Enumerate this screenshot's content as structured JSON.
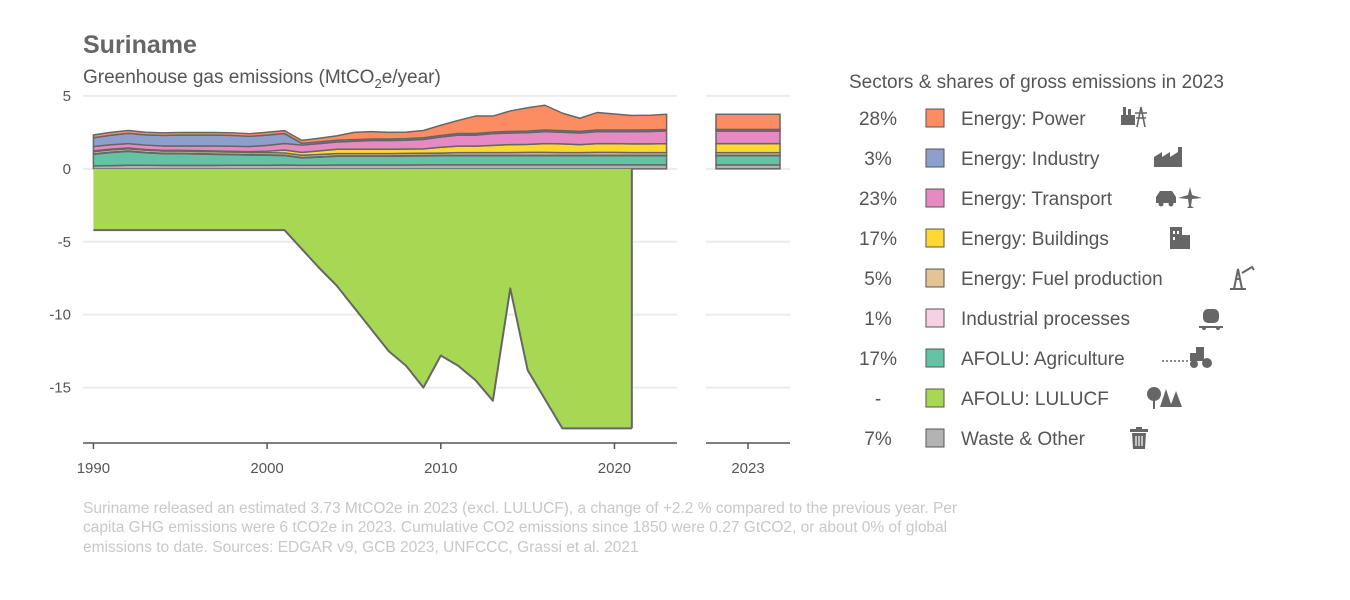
{
  "header": {
    "title": "Suriname",
    "subtitle_prefix": "Greenhouse gas emissions (MtCO",
    "subtitle_sub": "2",
    "subtitle_suffix": "e/year)"
  },
  "legend": {
    "title": "Sectors & shares of gross emissions in 2023",
    "items": [
      {
        "share": "28%",
        "label": "Energy: Power",
        "color": "#fc8d62",
        "icon": "power-plant-icon"
      },
      {
        "share": "3%",
        "label": "Energy: Industry",
        "color": "#8da0cb",
        "icon": "factory-icon"
      },
      {
        "share": "23%",
        "label": "Energy: Transport",
        "color": "#e78ac3",
        "icon": "car-plane-icon"
      },
      {
        "share": "17%",
        "label": "Energy: Buildings",
        "color": "#ffd92f",
        "icon": "building-icon"
      },
      {
        "share": "5%",
        "label": "Energy: Fuel production",
        "color": "#e5c494",
        "icon": "oil-rig-icon"
      },
      {
        "share": "1%",
        "label": "Industrial processes",
        "color": "#f9cfe4",
        "icon": "cement-mixer-icon"
      },
      {
        "share": "17%",
        "label": "AFOLU: Agriculture",
        "color": "#66c2a5",
        "icon": "tractor-icon"
      },
      {
        "share": "-",
        "label": "AFOLU: LULUCF",
        "color": "#a6d854",
        "icon": "trees-icon"
      },
      {
        "share": "7%",
        "label": "Waste & Other",
        "color": "#b3b3b3",
        "icon": "trash-icon"
      }
    ]
  },
  "footer": {
    "line1": "Suriname released an estimated 3.73 MtCO2e in 2023 (excl. LULUCF), a change of +2.2 % compared to the previous year. Per",
    "line2": "capita GHG emissions were 6 tCO2e in 2023. Cumulative CO2 emissions since 1850 were 0.27 GtCO2, or about 0% of global",
    "line3": "emissions to date. Sources: EDGAR v9, GCB 2023, UNFCCC, Grassi et al. 2021"
  },
  "chart_data": {
    "type": "area",
    "title": "Suriname",
    "subtitle": "Greenhouse gas emissions (MtCO2e/year)",
    "x": [
      1990,
      1991,
      1992,
      1993,
      1994,
      1995,
      1996,
      1997,
      1998,
      1999,
      2000,
      2001,
      2002,
      2003,
      2004,
      2005,
      2006,
      2007,
      2008,
      2009,
      2010,
      2011,
      2012,
      2013,
      2014,
      2015,
      2016,
      2017,
      2018,
      2019,
      2020,
      2021,
      2022,
      2023
    ],
    "xticks": [
      1990,
      2000,
      2010,
      2020
    ],
    "yticks": [
      5,
      0,
      -5,
      -10,
      -15
    ],
    "ylim": [
      -18.8,
      5.2
    ],
    "xlim": [
      1989.4,
      2023.6
    ],
    "series": [
      {
        "name": "Waste & Other",
        "color": "#b3b3b3",
        "values": [
          0.2,
          0.22,
          0.25,
          0.25,
          0.24,
          0.24,
          0.24,
          0.24,
          0.25,
          0.25,
          0.25,
          0.26,
          0.25,
          0.25,
          0.26,
          0.26,
          0.26,
          0.26,
          0.26,
          0.27,
          0.27,
          0.27,
          0.27,
          0.27,
          0.27,
          0.27,
          0.27,
          0.27,
          0.27,
          0.27,
          0.27,
          0.27,
          0.27,
          0.27
        ]
      },
      {
        "name": "AFOLU: Agriculture",
        "color": "#66c2a5",
        "values": [
          0.8,
          0.9,
          0.95,
          0.85,
          0.8,
          0.8,
          0.78,
          0.75,
          0.72,
          0.7,
          0.68,
          0.65,
          0.5,
          0.55,
          0.6,
          0.6,
          0.6,
          0.6,
          0.62,
          0.62,
          0.63,
          0.63,
          0.63,
          0.63,
          0.63,
          0.63,
          0.63,
          0.63,
          0.63,
          0.63,
          0.63,
          0.63,
          0.63,
          0.63
        ]
      },
      {
        "name": "Industrial processes",
        "color": "#f9cfe4",
        "values": [
          0.03,
          0.03,
          0.03,
          0.03,
          0.03,
          0.03,
          0.03,
          0.03,
          0.03,
          0.03,
          0.03,
          0.03,
          0.03,
          0.03,
          0.03,
          0.03,
          0.03,
          0.03,
          0.03,
          0.03,
          0.03,
          0.03,
          0.03,
          0.03,
          0.03,
          0.03,
          0.03,
          0.03,
          0.03,
          0.03,
          0.03,
          0.03,
          0.03,
          0.03
        ]
      },
      {
        "name": "Energy: Fuel production",
        "color": "#e5c494",
        "values": [
          0.15,
          0.15,
          0.15,
          0.15,
          0.15,
          0.15,
          0.15,
          0.15,
          0.15,
          0.15,
          0.15,
          0.15,
          0.15,
          0.15,
          0.15,
          0.15,
          0.15,
          0.15,
          0.15,
          0.15,
          0.15,
          0.18,
          0.18,
          0.18,
          0.18,
          0.2,
          0.2,
          0.18,
          0.18,
          0.2,
          0.2,
          0.18,
          0.18,
          0.18
        ]
      },
      {
        "name": "Energy: Buildings",
        "color": "#ffd92f",
        "values": [
          0.05,
          0.05,
          0.05,
          0.05,
          0.05,
          0.05,
          0.05,
          0.05,
          0.05,
          0.05,
          0.1,
          0.2,
          0.2,
          0.25,
          0.3,
          0.3,
          0.3,
          0.3,
          0.3,
          0.3,
          0.4,
          0.45,
          0.45,
          0.5,
          0.55,
          0.55,
          0.6,
          0.6,
          0.55,
          0.6,
          0.6,
          0.6,
          0.6,
          0.62
        ]
      },
      {
        "name": "Energy: Transport",
        "color": "#e78ac3",
        "values": [
          0.3,
          0.3,
          0.3,
          0.3,
          0.3,
          0.3,
          0.32,
          0.35,
          0.35,
          0.35,
          0.4,
          0.45,
          0.5,
          0.5,
          0.5,
          0.55,
          0.6,
          0.6,
          0.6,
          0.65,
          0.7,
          0.75,
          0.75,
          0.8,
          0.8,
          0.8,
          0.82,
          0.8,
          0.8,
          0.82,
          0.82,
          0.84,
          0.85,
          0.86
        ]
      },
      {
        "name": "Energy: Industry",
        "color": "#8da0cb",
        "values": [
          0.6,
          0.65,
          0.7,
          0.7,
          0.72,
          0.74,
          0.74,
          0.74,
          0.74,
          0.7,
          0.7,
          0.68,
          0.12,
          0.12,
          0.12,
          0.11,
          0.11,
          0.11,
          0.11,
          0.11,
          0.11,
          0.11,
          0.11,
          0.11,
          0.11,
          0.11,
          0.11,
          0.11,
          0.11,
          0.11,
          0.11,
          0.11,
          0.11,
          0.11
        ]
      },
      {
        "name": "Energy: Power",
        "color": "#fc8d62",
        "values": [
          0.2,
          0.2,
          0.2,
          0.18,
          0.18,
          0.18,
          0.18,
          0.18,
          0.18,
          0.18,
          0.2,
          0.2,
          0.2,
          0.25,
          0.3,
          0.5,
          0.5,
          0.45,
          0.45,
          0.5,
          0.7,
          0.9,
          1.2,
          1.1,
          1.4,
          1.6,
          1.7,
          1.2,
          0.9,
          1.2,
          1.1,
          1.0,
          1.0,
          1.04
        ]
      },
      {
        "name": "AFOLU: LULUCF",
        "color": "#a6d854",
        "values": [
          -4.2,
          -4.2,
          -4.2,
          -4.2,
          -4.2,
          -4.2,
          -4.2,
          -4.2,
          -4.2,
          -4.2,
          -4.2,
          -4.2,
          -5.5,
          -6.8,
          -8.0,
          -9.5,
          -11.0,
          -12.5,
          -13.5,
          -15.0,
          -12.8,
          -13.5,
          -14.5,
          -15.9,
          -8.2,
          -13.8,
          -15.8,
          -17.8,
          -17.8,
          -17.8,
          -17.8,
          -17.8,
          null,
          null
        ]
      }
    ],
    "bar_2023": {
      "category": "2023"
    }
  }
}
